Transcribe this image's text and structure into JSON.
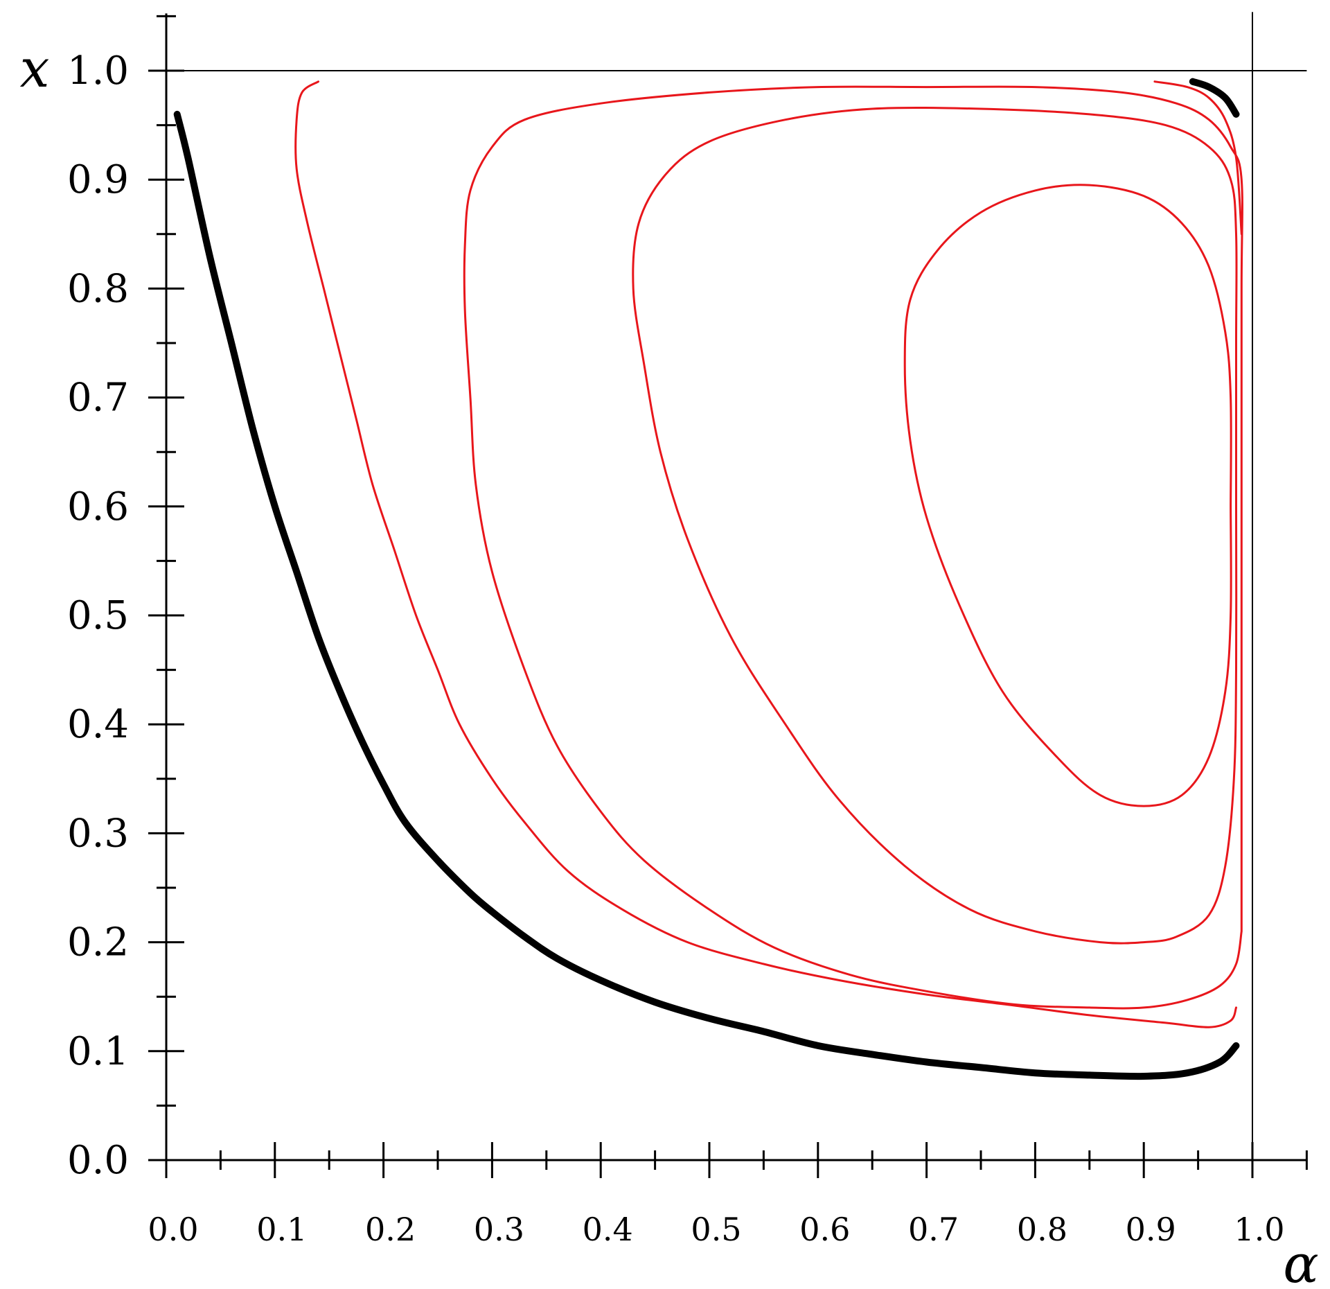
{
  "chart_data": {
    "type": "line",
    "xlabel": "α",
    "ylabel": "x",
    "xlim": [
      0.0,
      1.05
    ],
    "ylim": [
      0.0,
      1.05
    ],
    "x_ticks": [
      "0.0",
      "0.1",
      "0.2",
      "0.3",
      "0.4",
      "0.5",
      "0.6",
      "0.7",
      "0.8",
      "0.9",
      "1.0"
    ],
    "y_ticks": [
      "0.0",
      "0.1",
      "0.2",
      "0.3",
      "0.4",
      "0.5",
      "0.6",
      "0.7",
      "0.8",
      "0.9",
      "1.0"
    ],
    "x_tick_values": [
      0.0,
      0.1,
      0.2,
      0.3,
      0.4,
      0.5,
      0.6,
      0.7,
      0.8,
      0.9,
      1.0
    ],
    "y_tick_values": [
      0.0,
      0.1,
      0.2,
      0.3,
      0.4,
      0.5,
      0.6,
      0.7,
      0.8,
      0.9,
      1.0
    ],
    "reference_lines": {
      "x": 1.0,
      "y": 1.0
    },
    "grid": false,
    "legend": "none",
    "colors": {
      "separatrix": "#000000",
      "orbit": "#e8161b"
    },
    "series": [
      {
        "color": "#000000",
        "style": "thick",
        "points": [
          [
            0.01,
            0.96
          ],
          [
            0.02,
            0.92
          ],
          [
            0.04,
            0.83
          ],
          [
            0.06,
            0.75
          ],
          [
            0.08,
            0.67
          ],
          [
            0.1,
            0.6
          ],
          [
            0.12,
            0.54
          ],
          [
            0.14,
            0.48
          ],
          [
            0.16,
            0.43
          ],
          [
            0.18,
            0.385
          ],
          [
            0.2,
            0.345
          ],
          [
            0.22,
            0.31
          ],
          [
            0.25,
            0.275
          ],
          [
            0.28,
            0.245
          ],
          [
            0.3,
            0.228
          ],
          [
            0.33,
            0.205
          ],
          [
            0.36,
            0.185
          ],
          [
            0.4,
            0.165
          ],
          [
            0.45,
            0.145
          ],
          [
            0.5,
            0.13
          ],
          [
            0.55,
            0.118
          ],
          [
            0.6,
            0.105
          ],
          [
            0.65,
            0.097
          ],
          [
            0.7,
            0.09
          ],
          [
            0.75,
            0.085
          ],
          [
            0.8,
            0.08
          ],
          [
            0.85,
            0.078
          ],
          [
            0.9,
            0.077
          ],
          [
            0.94,
            0.08
          ],
          [
            0.97,
            0.09
          ],
          [
            0.985,
            0.105
          ]
        ]
      },
      {
        "color": "#000000",
        "style": "thick",
        "points": [
          [
            0.945,
            0.99
          ],
          [
            0.96,
            0.985
          ],
          [
            0.975,
            0.975
          ],
          [
            0.985,
            0.96
          ]
        ]
      },
      {
        "color": "#e8161b",
        "style": "thin",
        "points": [
          [
            0.14,
            0.99
          ],
          [
            0.125,
            0.98
          ],
          [
            0.12,
            0.955
          ],
          [
            0.12,
            0.91
          ],
          [
            0.13,
            0.86
          ],
          [
            0.145,
            0.8
          ],
          [
            0.16,
            0.74
          ],
          [
            0.175,
            0.68
          ],
          [
            0.19,
            0.62
          ],
          [
            0.21,
            0.56
          ],
          [
            0.23,
            0.5
          ],
          [
            0.25,
            0.45
          ],
          [
            0.27,
            0.4
          ],
          [
            0.3,
            0.35
          ],
          [
            0.33,
            0.31
          ],
          [
            0.37,
            0.265
          ],
          [
            0.42,
            0.23
          ],
          [
            0.48,
            0.2
          ],
          [
            0.55,
            0.18
          ],
          [
            0.62,
            0.165
          ],
          [
            0.7,
            0.152
          ],
          [
            0.78,
            0.142
          ],
          [
            0.85,
            0.133
          ],
          [
            0.92,
            0.126
          ],
          [
            0.96,
            0.122
          ],
          [
            0.98,
            0.128
          ],
          [
            0.985,
            0.14
          ]
        ]
      },
      {
        "color": "#e8161b",
        "style": "thin",
        "points": [
          [
            0.99,
            0.21
          ],
          [
            0.985,
            0.18
          ],
          [
            0.97,
            0.16
          ],
          [
            0.94,
            0.147
          ],
          [
            0.9,
            0.14
          ],
          [
            0.85,
            0.14
          ],
          [
            0.78,
            0.143
          ],
          [
            0.7,
            0.155
          ],
          [
            0.63,
            0.17
          ],
          [
            0.56,
            0.195
          ],
          [
            0.5,
            0.23
          ],
          [
            0.44,
            0.275
          ],
          [
            0.4,
            0.32
          ],
          [
            0.36,
            0.38
          ],
          [
            0.33,
            0.45
          ],
          [
            0.3,
            0.54
          ],
          [
            0.285,
            0.62
          ],
          [
            0.28,
            0.7
          ],
          [
            0.275,
            0.78
          ],
          [
            0.275,
            0.84
          ],
          [
            0.28,
            0.89
          ],
          [
            0.3,
            0.93
          ],
          [
            0.33,
            0.955
          ],
          [
            0.4,
            0.97
          ],
          [
            0.5,
            0.98
          ],
          [
            0.6,
            0.985
          ],
          [
            0.7,
            0.985
          ],
          [
            0.8,
            0.985
          ],
          [
            0.88,
            0.98
          ],
          [
            0.93,
            0.97
          ],
          [
            0.96,
            0.955
          ],
          [
            0.98,
            0.93
          ],
          [
            0.99,
            0.9
          ],
          [
            0.99,
            0.8
          ],
          [
            0.99,
            0.6
          ],
          [
            0.99,
            0.4
          ],
          [
            0.99,
            0.21
          ]
        ]
      },
      {
        "color": "#e8161b",
        "style": "thin",
        "points": [
          [
            0.91,
            0.99
          ],
          [
            0.94,
            0.985
          ],
          [
            0.96,
            0.975
          ],
          [
            0.975,
            0.955
          ],
          [
            0.985,
            0.92
          ],
          [
            0.99,
            0.85
          ]
        ]
      },
      {
        "color": "#e8161b",
        "style": "thin",
        "points": [
          [
            0.985,
            0.6
          ],
          [
            0.985,
            0.45
          ],
          [
            0.983,
            0.35
          ],
          [
            0.975,
            0.27
          ],
          [
            0.96,
            0.225
          ],
          [
            0.93,
            0.205
          ],
          [
            0.9,
            0.2
          ],
          [
            0.86,
            0.2
          ],
          [
            0.8,
            0.21
          ],
          [
            0.74,
            0.23
          ],
          [
            0.68,
            0.27
          ],
          [
            0.62,
            0.33
          ],
          [
            0.57,
            0.4
          ],
          [
            0.52,
            0.48
          ],
          [
            0.48,
            0.57
          ],
          [
            0.455,
            0.65
          ],
          [
            0.44,
            0.73
          ],
          [
            0.43,
            0.8
          ],
          [
            0.435,
            0.86
          ],
          [
            0.46,
            0.905
          ],
          [
            0.5,
            0.935
          ],
          [
            0.57,
            0.955
          ],
          [
            0.65,
            0.965
          ],
          [
            0.75,
            0.965
          ],
          [
            0.85,
            0.96
          ],
          [
            0.92,
            0.95
          ],
          [
            0.96,
            0.93
          ],
          [
            0.98,
            0.9
          ],
          [
            0.985,
            0.85
          ],
          [
            0.985,
            0.75
          ],
          [
            0.985,
            0.6
          ]
        ]
      },
      {
        "color": "#e8161b",
        "style": "thin",
        "points": [
          [
            0.98,
            0.6
          ],
          [
            0.98,
            0.5
          ],
          [
            0.975,
            0.43
          ],
          [
            0.96,
            0.37
          ],
          [
            0.935,
            0.335
          ],
          [
            0.9,
            0.325
          ],
          [
            0.86,
            0.335
          ],
          [
            0.82,
            0.37
          ],
          [
            0.77,
            0.43
          ],
          [
            0.73,
            0.51
          ],
          [
            0.7,
            0.59
          ],
          [
            0.685,
            0.66
          ],
          [
            0.68,
            0.73
          ],
          [
            0.685,
            0.79
          ],
          [
            0.71,
            0.835
          ],
          [
            0.75,
            0.87
          ],
          [
            0.8,
            0.89
          ],
          [
            0.85,
            0.895
          ],
          [
            0.9,
            0.885
          ],
          [
            0.935,
            0.86
          ],
          [
            0.96,
            0.82
          ],
          [
            0.975,
            0.76
          ],
          [
            0.98,
            0.7
          ],
          [
            0.98,
            0.6
          ]
        ]
      }
    ]
  }
}
